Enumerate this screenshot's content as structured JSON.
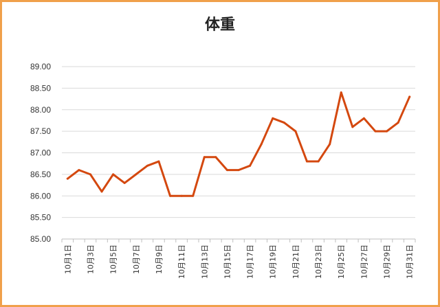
{
  "chart_data": {
    "type": "line",
    "title": "体重",
    "xlabel": "",
    "ylabel": "",
    "ylim": [
      85.0,
      89.0
    ],
    "y_ticks": [
      "85.00",
      "85.50",
      "86.00",
      "86.50",
      "87.00",
      "87.50",
      "88.00",
      "88.50",
      "89.00"
    ],
    "grid": "horizontal",
    "legend": "none",
    "x": [
      "10月1日",
      "10月2日",
      "10月3日",
      "10月4日",
      "10月5日",
      "10月6日",
      "10月7日",
      "10月8日",
      "10月9日",
      "10月10日",
      "10月11日",
      "10月12日",
      "10月13日",
      "10月14日",
      "10月15日",
      "10月16日",
      "10月17日",
      "10月18日",
      "10月19日",
      "10月20日",
      "10月21日",
      "10月22日",
      "10月23日",
      "10月24日",
      "10月25日",
      "10月26日",
      "10月27日",
      "10月28日",
      "10月29日",
      "10月30日",
      "10月31日"
    ],
    "x_tick_labels": [
      "10月1日",
      "10月3日",
      "10月5日",
      "10月7日",
      "10月9日",
      "10月11日",
      "10月13日",
      "10月15日",
      "10月17日",
      "10月19日",
      "10月21日",
      "10月23日",
      "10月25日",
      "10月27日",
      "10月29日",
      "10月31日"
    ],
    "series": [
      {
        "values": [
          86.4,
          86.6,
          86.5,
          86.1,
          86.5,
          86.3,
          86.5,
          86.7,
          86.8,
          86.0,
          86.0,
          86.0,
          86.9,
          86.9,
          86.6,
          86.6,
          86.7,
          87.2,
          87.8,
          87.7,
          87.5,
          86.8,
          86.8,
          87.2,
          88.4,
          87.6,
          87.8,
          87.5,
          87.5,
          87.7,
          88.3
        ],
        "color": "#d4480f"
      }
    ],
    "border_color": "#f0a04b"
  }
}
